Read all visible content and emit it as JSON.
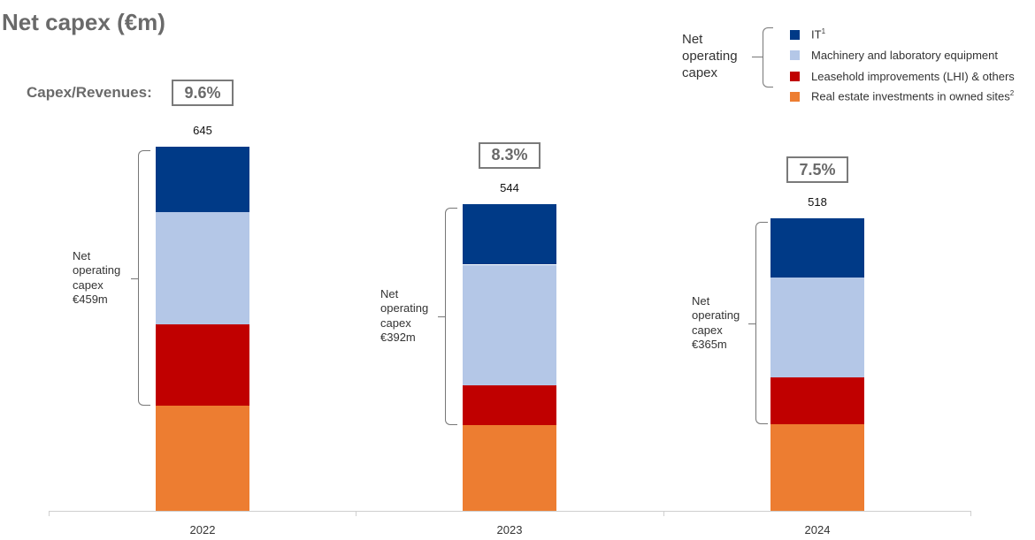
{
  "title": "Net capex (€m)",
  "capex_revenue_label": "Capex/Revenues:",
  "colors": {
    "it": "#003a87",
    "machinery": "#b4c7e7",
    "lhi": "#c00000",
    "real_estate": "#ed7d31"
  },
  "legend": {
    "title": "Net\noperating\ncapex",
    "items": [
      {
        "key": "it",
        "label": "IT",
        "sup": "1"
      },
      {
        "key": "machinery",
        "label": "Machinery and laboratory equipment",
        "sup": ""
      },
      {
        "key": "lhi",
        "label": "Leasehold improvements (LHI) & others",
        "sup": ""
      },
      {
        "key": "real_estate",
        "label": "Real estate investments in owned sites",
        "sup": "2"
      }
    ]
  },
  "chart_data": {
    "type": "bar",
    "stacked": true,
    "title": "Net capex (€m)",
    "categories": [
      "2022",
      "2023",
      "2024"
    ],
    "totals": [
      645,
      544,
      518
    ],
    "capex_revenue_ratio": [
      "9.6%",
      "8.3%",
      "7.5%"
    ],
    "net_operating_capex_labels": [
      "Net\noperating\ncapex\n€459m",
      "Net\noperating\ncapex\n€392m",
      "Net\noperating\ncapex\n€365m"
    ],
    "net_operating_capex_values": [
      459,
      392,
      365
    ],
    "series": [
      {
        "name": "Real estate investments in owned sites",
        "key": "real_estate",
        "values": [
          186,
          152,
          153
        ]
      },
      {
        "name": "Leasehold improvements (LHI) & others",
        "key": "lhi",
        "values": [
          145,
          70,
          83
        ]
      },
      {
        "name": "Machinery and laboratory equipment",
        "key": "machinery",
        "values": [
          198,
          214,
          177
        ]
      },
      {
        "name": "IT",
        "key": "it",
        "values": [
          116,
          108,
          105
        ]
      }
    ],
    "ylim": [
      0,
      645
    ],
    "grid": false,
    "legend_position": "top-right"
  }
}
